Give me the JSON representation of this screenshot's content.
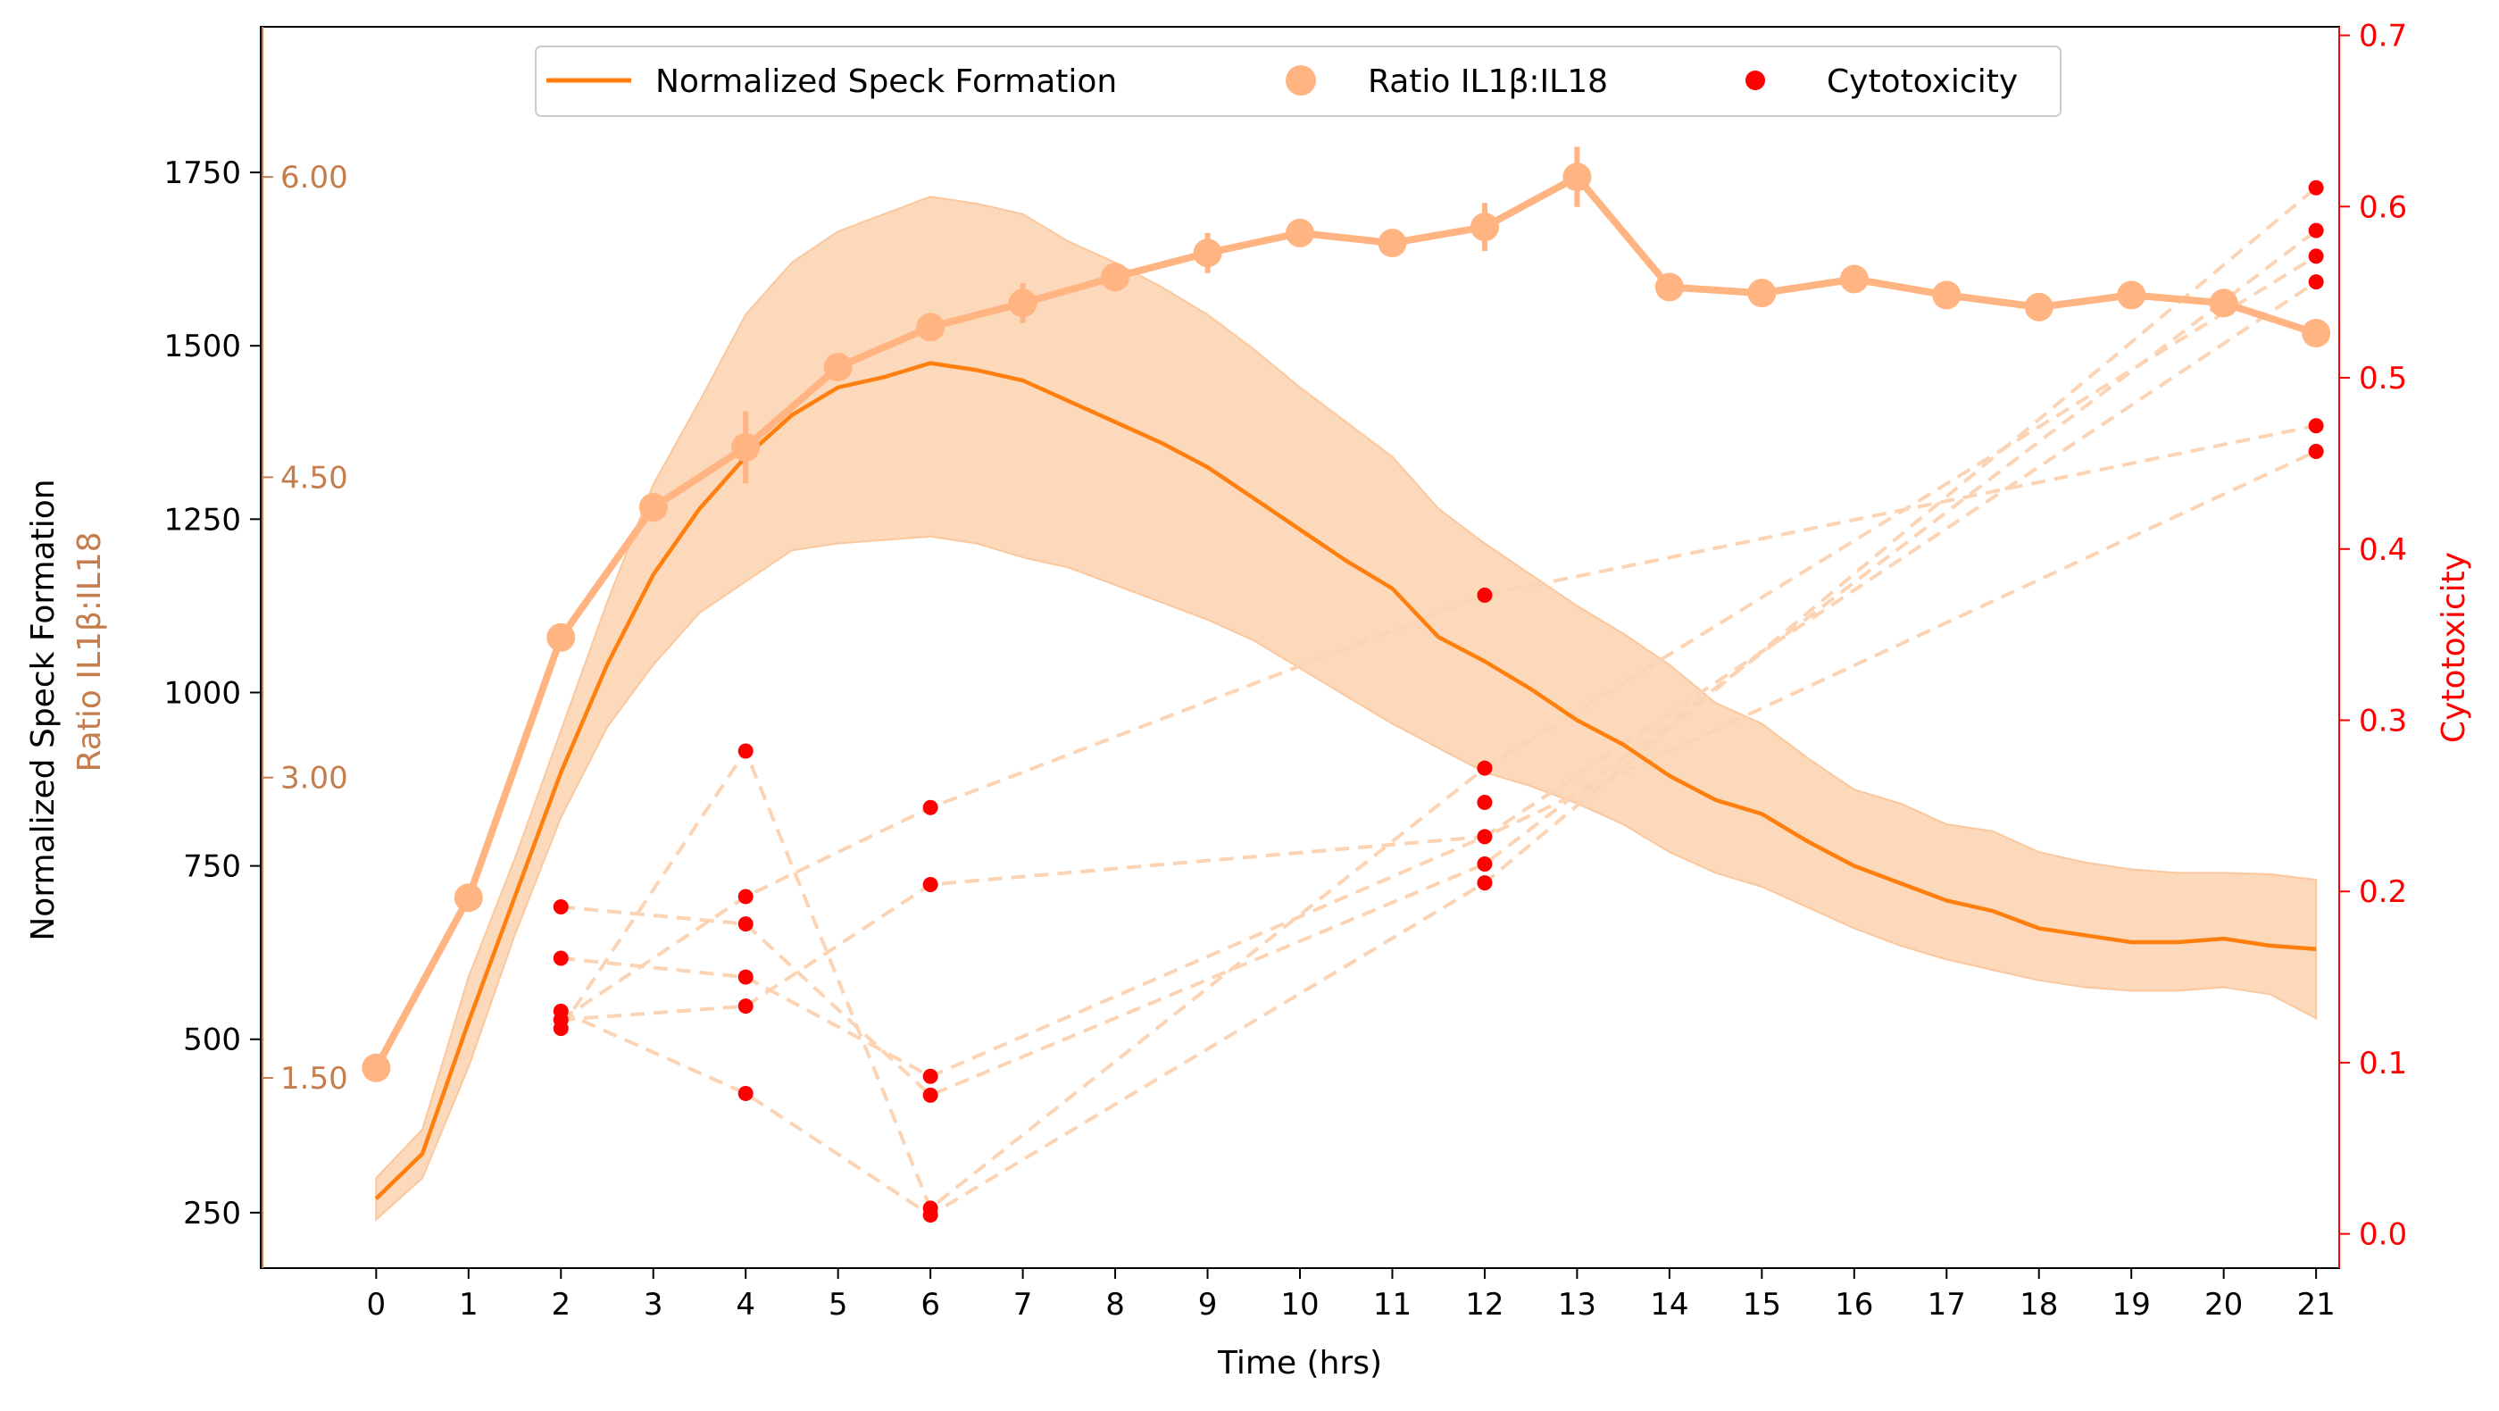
{
  "chart_data": {
    "type": "line",
    "xlabel": "Time (hrs)",
    "ylabel_left": "Normalized Speck Formation",
    "ylabel_left_secondary": "Ratio IL1β:IL18",
    "ylabel_right": "Cytotoxicity",
    "xlim": [
      -1.25,
      21.25
    ],
    "x_ticks": [
      "0",
      "1",
      "2",
      "3",
      "4",
      "5",
      "6",
      "7",
      "8",
      "9",
      "10",
      "11",
      "12",
      "13",
      "14",
      "15",
      "16",
      "17",
      "18",
      "19",
      "20",
      "21"
    ],
    "ylim_left": [
      170,
      1960
    ],
    "yticks_left": [
      "250",
      "500",
      "750",
      "1000",
      "1250",
      "1500",
      "1750"
    ],
    "ylim_ratio": [
      0.55,
      6.75
    ],
    "yticks_ratio": [
      "1.50",
      "3.00",
      "4.50",
      "6.00"
    ],
    "ylim_right": [
      -0.02,
      0.705
    ],
    "yticks_right": [
      "0.0",
      "0.1",
      "0.2",
      "0.3",
      "0.4",
      "0.5",
      "0.6",
      "0.7"
    ],
    "legend": {
      "placement": "top-center",
      "entries": [
        "Normalized Speck Formation",
        "Ratio IL1β:IL18",
        "Cytotoxicity"
      ]
    },
    "colors": {
      "speck_line": "#ff7f0e",
      "speck_band": "#fdd2b0",
      "ratio": "#ffb482",
      "ratio_axis": "#c47d4c",
      "cyto_points": "#ff0000",
      "cyto_lines": "#fcd3b3"
    },
    "speck": {
      "name": "Normalized Speck Formation",
      "x": [
        0,
        0.5,
        1,
        1.5,
        2,
        2.5,
        3,
        3.5,
        4,
        4.5,
        5,
        5.5,
        6,
        6.5,
        7,
        7.5,
        8,
        8.5,
        9,
        9.5,
        10,
        10.5,
        11,
        11.5,
        12,
        12.5,
        13,
        13.5,
        14,
        14.5,
        15,
        15.5,
        16,
        16.5,
        17,
        17.5,
        18,
        18.5,
        19,
        19.5,
        20,
        20.5,
        21
      ],
      "y": [
        270,
        335,
        525,
        705,
        885,
        1040,
        1170,
        1265,
        1340,
        1400,
        1440,
        1455,
        1475,
        1465,
        1450,
        1420,
        1390,
        1360,
        1325,
        1280,
        1235,
        1190,
        1150,
        1080,
        1045,
        1005,
        960,
        925,
        880,
        845,
        825,
        785,
        750,
        725,
        700,
        685,
        660,
        650,
        640,
        640,
        645,
        635,
        630
      ],
      "upper": [
        300,
        370,
        590,
        760,
        945,
        1130,
        1300,
        1420,
        1545,
        1620,
        1665,
        1690,
        1715,
        1705,
        1690,
        1650,
        1620,
        1585,
        1545,
        1495,
        1440,
        1390,
        1340,
        1265,
        1215,
        1170,
        1125,
        1085,
        1040,
        985,
        955,
        905,
        860,
        840,
        810,
        800,
        770,
        755,
        745,
        740,
        740,
        738,
        730
      ],
      "lower": [
        240,
        300,
        460,
        650,
        820,
        950,
        1040,
        1115,
        1160,
        1205,
        1215,
        1220,
        1225,
        1215,
        1195,
        1180,
        1155,
        1130,
        1105,
        1075,
        1035,
        995,
        955,
        920,
        885,
        865,
        840,
        810,
        770,
        740,
        720,
        690,
        660,
        635,
        615,
        600,
        585,
        575,
        570,
        570,
        575,
        565,
        530
      ]
    },
    "ratio": {
      "name": "Ratio IL1β:IL18",
      "x": [
        0,
        1,
        2,
        3,
        4,
        5,
        6,
        7,
        8,
        9,
        10,
        11,
        12,
        13,
        14,
        15,
        16,
        17,
        18,
        19,
        20,
        21
      ],
      "y": [
        1.55,
        2.4,
        3.7,
        4.35,
        4.65,
        5.05,
        5.25,
        5.37,
        5.5,
        5.62,
        5.72,
        5.67,
        5.75,
        6.0,
        5.45,
        5.42,
        5.49,
        5.41,
        5.35,
        5.41,
        5.37,
        5.22
      ],
      "err": [
        0.04,
        0.05,
        0.06,
        0.07,
        0.18,
        0.06,
        0.07,
        0.1,
        0.07,
        0.1,
        0.07,
        0.07,
        0.12,
        0.15,
        0.05,
        0.05,
        0.05,
        0.05,
        0.05,
        0.05,
        0.04,
        0.04
      ]
    },
    "cytotoxicity": {
      "name": "Cytotoxicity",
      "points": [
        [
          2,
          0.191
        ],
        [
          2,
          0.161
        ],
        [
          2,
          0.13
        ],
        [
          2,
          0.125
        ],
        [
          2,
          0.12
        ],
        [
          4,
          0.282
        ],
        [
          4,
          0.197
        ],
        [
          4,
          0.181
        ],
        [
          4,
          0.15
        ],
        [
          4,
          0.133
        ],
        [
          4,
          0.082
        ],
        [
          6,
          0.249
        ],
        [
          6,
          0.204
        ],
        [
          6,
          0.092
        ],
        [
          6,
          0.081
        ],
        [
          6,
          0.015
        ],
        [
          6,
          0.011
        ],
        [
          12,
          0.373
        ],
        [
          12,
          0.272
        ],
        [
          12,
          0.252
        ],
        [
          12,
          0.232
        ],
        [
          12,
          0.216
        ],
        [
          12,
          0.205
        ],
        [
          21,
          0.611
        ],
        [
          21,
          0.586
        ],
        [
          21,
          0.571
        ],
        [
          21,
          0.556
        ],
        [
          21,
          0.472
        ],
        [
          21,
          0.457
        ]
      ],
      "trajectories": [
        [
          [
            2,
            0.191
          ],
          [
            4,
            0.181
          ],
          [
            6,
            0.081
          ],
          [
            12,
            0.216
          ],
          [
            21,
            0.586
          ]
        ],
        [
          [
            2,
            0.161
          ],
          [
            4,
            0.15
          ],
          [
            6,
            0.092
          ],
          [
            12,
            0.232
          ],
          [
            21,
            0.556
          ]
        ],
        [
          [
            2,
            0.13
          ],
          [
            4,
            0.082
          ],
          [
            6,
            0.011
          ],
          [
            12,
            0.205
          ],
          [
            21,
            0.611
          ]
        ],
        [
          [
            2,
            0.125
          ],
          [
            4,
            0.133
          ],
          [
            6,
            0.204
          ],
          [
            12,
            0.232
          ],
          [
            21,
            0.457
          ]
        ],
        [
          [
            2,
            0.12
          ],
          [
            4,
            0.282
          ],
          [
            6,
            0.015
          ],
          [
            12,
            0.272
          ],
          [
            21,
            0.571
          ]
        ],
        [
          [
            2,
            0.125
          ],
          [
            4,
            0.197
          ],
          [
            6,
            0.249
          ],
          [
            12,
            0.373
          ],
          [
            21,
            0.472
          ]
        ]
      ]
    }
  }
}
